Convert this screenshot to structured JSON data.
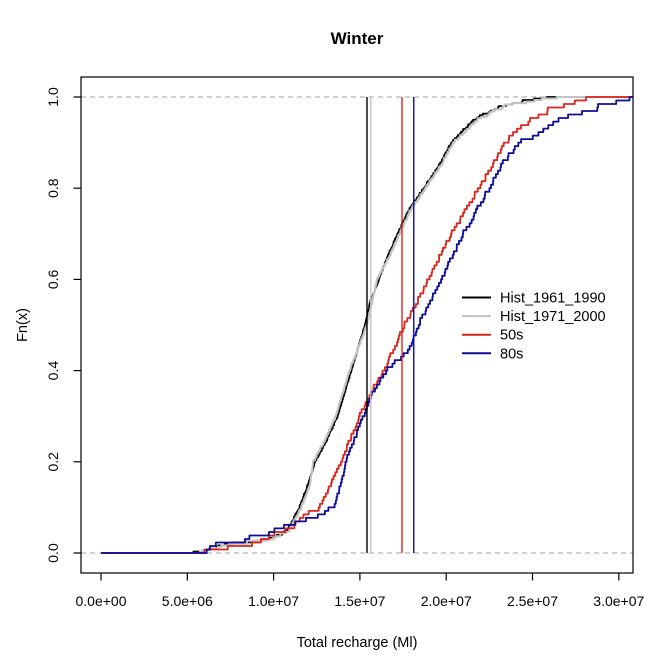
{
  "title": "Winter",
  "chart_data": {
    "type": "line",
    "subtype": "ecdf_step",
    "title": "Winter",
    "xlabel": "Total recharge (Ml)",
    "ylabel": "Fn(x)",
    "xlim": [
      0,
      30000000
    ],
    "ylim": [
      0.0,
      1.0
    ],
    "grid": {
      "y_values": [
        0.0,
        1.0
      ],
      "style": "dashed",
      "color": "#b3b3b3"
    },
    "x_ticks": {
      "values": [
        0,
        5000000,
        10000000,
        15000000,
        20000000,
        25000000,
        30000000
      ],
      "labels": [
        "0.0e+00",
        "5.0e+06",
        "1.0e+07",
        "1.5e+07",
        "2.0e+07",
        "2.5e+07",
        "3.0e+07"
      ]
    },
    "y_ticks": {
      "values": [
        0.0,
        0.2,
        0.4,
        0.6,
        0.8,
        1.0
      ],
      "labels": [
        "0.0",
        "0.2",
        "0.4",
        "0.6",
        "0.8",
        "1.0"
      ]
    },
    "legend": {
      "position": "right-middle",
      "entries": [
        {
          "label": "Hist_1961_1990",
          "color": "#000000"
        },
        {
          "label": "Hist_1971_2000",
          "color": "#c3c3c3"
        },
        {
          "label": "50s",
          "color": "#d9261c"
        },
        {
          "label": "80s",
          "color": "#0d0d96"
        }
      ]
    },
    "series": [
      {
        "name": "Hist_1961_1990",
        "color": "#000000",
        "mean_vline": 15410000,
        "n_steps": 300,
        "quantiles": [
          [
            0,
            5300000
          ],
          [
            0.01,
            6300000
          ],
          [
            0.02,
            7600000
          ],
          [
            0.03,
            9800000
          ],
          [
            0.05,
            10800000
          ],
          [
            0.1,
            11500000
          ],
          [
            0.15,
            12000000
          ],
          [
            0.2,
            12400000
          ],
          [
            0.25,
            13100000
          ],
          [
            0.3,
            13700000
          ],
          [
            0.4,
            14500000
          ],
          [
            0.5,
            15300000
          ],
          [
            0.55,
            15600000
          ],
          [
            0.6,
            16100000
          ],
          [
            0.65,
            16600000
          ],
          [
            0.7,
            17200000
          ],
          [
            0.75,
            17800000
          ],
          [
            0.8,
            18700000
          ],
          [
            0.85,
            19600000
          ],
          [
            0.9,
            20300000
          ],
          [
            0.95,
            21600000
          ],
          [
            0.98,
            23200000
          ],
          [
            0.995,
            25000000
          ],
          [
            1,
            26100000
          ]
        ]
      },
      {
        "name": "Hist_1971_2000",
        "color": "#c3c3c3",
        "mean_vline": 15630000,
        "n_steps": 300,
        "quantiles": [
          [
            0,
            5400000
          ],
          [
            0.01,
            6400000
          ],
          [
            0.02,
            7700000
          ],
          [
            0.03,
            9900000
          ],
          [
            0.05,
            10900000
          ],
          [
            0.1,
            11600000
          ],
          [
            0.15,
            12100000
          ],
          [
            0.2,
            12300000
          ],
          [
            0.25,
            13000000
          ],
          [
            0.3,
            13600000
          ],
          [
            0.4,
            14400000
          ],
          [
            0.5,
            15400000
          ],
          [
            0.55,
            15700000
          ],
          [
            0.6,
            16000000
          ],
          [
            0.65,
            16700000
          ],
          [
            0.7,
            17300000
          ],
          [
            0.75,
            17900000
          ],
          [
            0.8,
            18800000
          ],
          [
            0.85,
            19700000
          ],
          [
            0.9,
            20400000
          ],
          [
            0.95,
            21800000
          ],
          [
            0.98,
            23400000
          ],
          [
            0.995,
            25600000
          ],
          [
            1,
            26800000
          ]
        ]
      },
      {
        "name": "50s",
        "color": "#d9261c",
        "mean_vline": 17440000,
        "n_steps": 130,
        "quantiles": [
          [
            0,
            5900000
          ],
          [
            0.01,
            6900000
          ],
          [
            0.02,
            8600000
          ],
          [
            0.05,
            10800000
          ],
          [
            0.1,
            12600000
          ],
          [
            0.15,
            13300000
          ],
          [
            0.2,
            13900000
          ],
          [
            0.3,
            15000000
          ],
          [
            0.35,
            15600000
          ],
          [
            0.4,
            16400000
          ],
          [
            0.5,
            17600000
          ],
          [
            0.6,
            19000000
          ],
          [
            0.7,
            20300000
          ],
          [
            0.8,
            21900000
          ],
          [
            0.85,
            22700000
          ],
          [
            0.9,
            23400000
          ],
          [
            0.95,
            24900000
          ],
          [
            0.98,
            26400000
          ],
          [
            1,
            28100000
          ]
        ]
      },
      {
        "name": "80s",
        "color": "#0d0d96",
        "mean_vline": 18120000,
        "n_steps": 130,
        "quantiles": [
          [
            0,
            5400000
          ],
          [
            0.02,
            7100000
          ],
          [
            0.04,
            9500000
          ],
          [
            0.07,
            12000000
          ],
          [
            0.1,
            13500000
          ],
          [
            0.15,
            13900000
          ],
          [
            0.2,
            14200000
          ],
          [
            0.3,
            15200000
          ],
          [
            0.35,
            15700000
          ],
          [
            0.4,
            16600000
          ],
          [
            0.45,
            17900000
          ],
          [
            0.5,
            18400000
          ],
          [
            0.6,
            19700000
          ],
          [
            0.7,
            21000000
          ],
          [
            0.8,
            22500000
          ],
          [
            0.85,
            23200000
          ],
          [
            0.9,
            24300000
          ],
          [
            0.95,
            26600000
          ],
          [
            0.98,
            29000000
          ],
          [
            1,
            30700000
          ]
        ]
      }
    ]
  }
}
